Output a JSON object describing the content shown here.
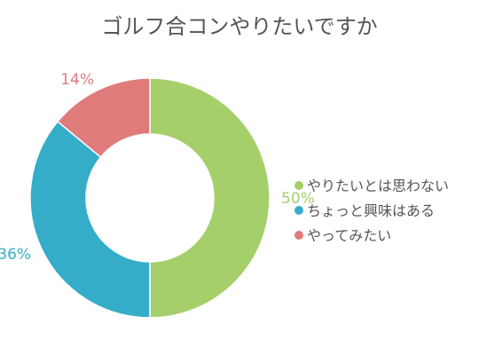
{
  "chart_data": {
    "type": "pie",
    "variant": "donut",
    "title": "ゴルフ合コンやりたいですか",
    "legend_position": "right",
    "series": [
      {
        "name": "やりたいとは思わない",
        "value": 50,
        "label": "50%",
        "color": "#a5cf6b"
      },
      {
        "name": "ちょっと興味はある",
        "value": 36,
        "label": "36%",
        "color": "#35adc9"
      },
      {
        "name": "やってみたい",
        "value": 14,
        "label": "14%",
        "color": "#e07b7b"
      }
    ]
  }
}
